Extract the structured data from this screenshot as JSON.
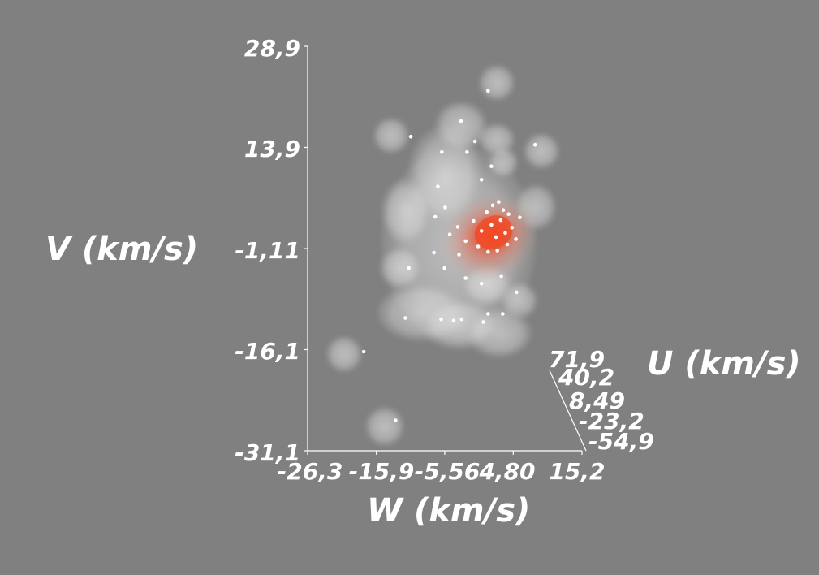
{
  "chart_data": {
    "type": "scatter",
    "subtype": "3d-scatter-with-density-isosurfaces",
    "title": "",
    "axes": {
      "V": {
        "label": "V (km/s)",
        "ticks": [
          "28,9",
          "13,9",
          "-1,11",
          "-16,1",
          "-31,1"
        ],
        "range": [
          -31.1,
          28.9
        ]
      },
      "W": {
        "label": "W (km/s)",
        "ticks": [
          "-26,3",
          "-15,9",
          "-5,56",
          "4,80",
          "15,2"
        ],
        "range": [
          -26.3,
          15.2
        ]
      },
      "U": {
        "label": "U (km/s)",
        "ticks": [
          "71,9",
          "40,2",
          "8,49",
          "-23,2",
          "-54,9"
        ],
        "range": [
          -54.9,
          71.9
        ]
      }
    },
    "grid": false,
    "legend": "none",
    "colors": {
      "background": "#808080",
      "axis": "#ffffff",
      "low_density_surface": "#e8e8e8",
      "high_density_surface": "#e0442c",
      "points": "#ffffff"
    },
    "density_peak": {
      "w": 2.5,
      "v": 1.5
    },
    "points": [
      {
        "w": 1.0,
        "v": 22.3
      },
      {
        "w": -10.7,
        "v": 15.5
      },
      {
        "w": 8.1,
        "v": 14.3
      },
      {
        "w": -3.1,
        "v": 17.8
      },
      {
        "w": -1.0,
        "v": 14.8
      },
      {
        "w": 1.5,
        "v": 11.1
      },
      {
        "w": 0.0,
        "v": 9.1
      },
      {
        "w": -6.0,
        "v": 13.2
      },
      {
        "w": -2.2,
        "v": 13.2
      },
      {
        "w": -6.6,
        "v": 8.1
      },
      {
        "w": -11.0,
        "v": -4.0
      },
      {
        "w": -5.6,
        "v": -4.0
      },
      {
        "w": -2.4,
        "v": -5.5
      },
      {
        "w": 0.0,
        "v": -6.3
      },
      {
        "w": 3.0,
        "v": -5.2
      },
      {
        "w": 5.3,
        "v": -7.6
      },
      {
        "w": -11.5,
        "v": -11.4
      },
      {
        "w": -6.1,
        "v": -11.6
      },
      {
        "w": -4.2,
        "v": -11.8
      },
      {
        "w": -3.0,
        "v": -11.6
      },
      {
        "w": 0.3,
        "v": -12.0
      },
      {
        "w": 1.0,
        "v": -10.8
      },
      {
        "w": 3.2,
        "v": -10.8
      },
      {
        "w": -17.8,
        "v": -16.4
      },
      {
        "w": -13.0,
        "v": -26.6
      },
      {
        "w": -4.8,
        "v": 1.0
      },
      {
        "w": -3.6,
        "v": 2.1
      },
      {
        "w": -2.4,
        "v": 0.0
      },
      {
        "w": -1.2,
        "v": 3.0
      },
      {
        "w": 0.0,
        "v": 1.5
      },
      {
        "w": 0.8,
        "v": 4.3
      },
      {
        "w": 1.5,
        "v": 2.4
      },
      {
        "w": 2.2,
        "v": 0.6
      },
      {
        "w": 2.9,
        "v": 3.1
      },
      {
        "w": 3.6,
        "v": 1.2
      },
      {
        "w": 4.1,
        "v": 4.0
      },
      {
        "w": 4.6,
        "v": 2.0
      },
      {
        "w": 5.2,
        "v": 0.3
      },
      {
        "w": 5.8,
        "v": 3.5
      },
      {
        "w": 1.7,
        "v": 5.3
      },
      {
        "w": 2.6,
        "v": 5.8
      },
      {
        "w": 3.3,
        "v": 4.6
      },
      {
        "w": -0.5,
        "v": -0.8
      },
      {
        "w": 1.0,
        "v": -1.6
      },
      {
        "w": 2.4,
        "v": -1.4
      },
      {
        "w": 3.9,
        "v": -0.5
      },
      {
        "w": -3.4,
        "v": -2.0
      },
      {
        "w": -7.2,
        "v": -1.7
      },
      {
        "w": -7.0,
        "v": 3.6
      },
      {
        "w": -5.5,
        "v": 5.0
      }
    ]
  }
}
